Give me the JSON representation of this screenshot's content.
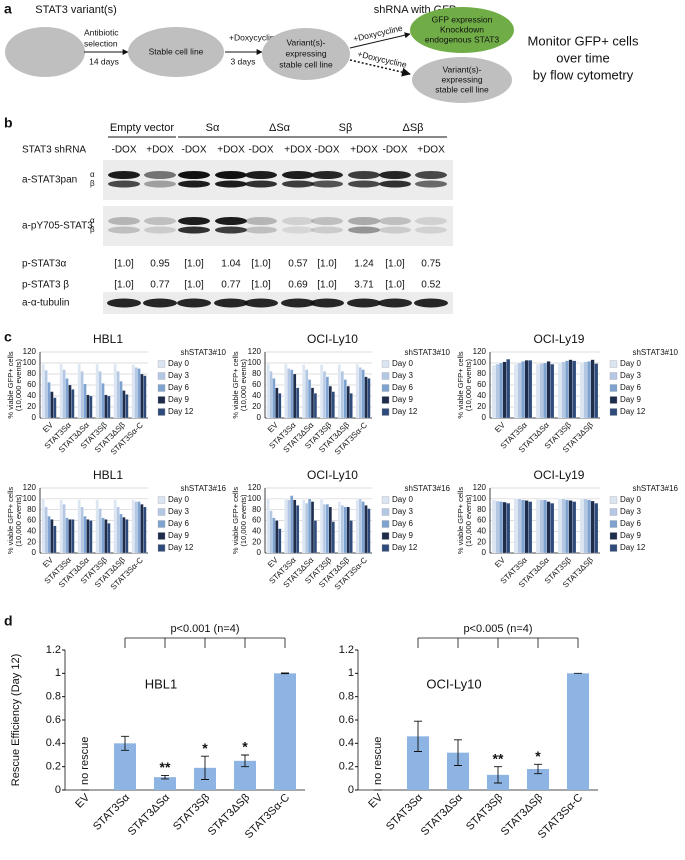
{
  "panel_labels": [
    "a",
    "b",
    "c",
    "d"
  ],
  "diagram": {
    "variant_label": "STAT3 variant(s)",
    "selection_label": [
      "Antibiotic",
      "selection"
    ],
    "selection_time": "14 days",
    "stable_line": "Stable cell line",
    "dox_label": "+Doxycycline",
    "dox_time": "3 days",
    "expressing_line": [
      "Variant(s)-",
      "expressing",
      "stable cell line"
    ],
    "shrna_label": "shRNA with GFP",
    "gfp_node": [
      "GFP expression",
      "Knockdown",
      "endogenous STAT3"
    ],
    "dox_label_2": "+Doxycycline",
    "dox_label_3": "+Doxycycline",
    "expressing_line_2": [
      "Variant(s)-",
      "expressing",
      "stable cell line"
    ],
    "monitor": [
      "Monitor GFP+ cells",
      "over time",
      "by flow cytometry"
    ]
  },
  "blot": {
    "groups": [
      "Empty vector",
      "Sα",
      "ΔSα",
      "Sβ",
      "ΔSβ"
    ],
    "shrna_label": "STAT3 shRNA",
    "lanes": [
      "-DOX",
      "+DOX",
      "-DOX",
      "+DOX",
      "-DOX",
      "+DOX",
      "-DOX",
      "+DOX",
      "-DOX",
      "+DOX"
    ],
    "rows": [
      {
        "label": "a-STAT3pan",
        "isoforms": [
          "α",
          "β"
        ]
      },
      {
        "label": "a-pY705-STAT3",
        "isoforms": [
          "α",
          "β"
        ]
      }
    ],
    "quant": [
      {
        "label": "p-STAT3α",
        "values": [
          "[1.0]",
          "0.95",
          "[1.0]",
          "1.04",
          "[1.0]",
          "0.57",
          "[1.0]",
          "1.24",
          "[1.0]",
          "0.75"
        ]
      },
      {
        "label": "p-STAT3 β",
        "values": [
          "[1.0]",
          "0.77",
          "[1.0]",
          "0.77",
          "[1.0]",
          "0.69",
          "[1.0]",
          "3.71",
          "[1.0]",
          "0.52"
        ]
      }
    ],
    "loading": "a-α-tubulin"
  },
  "chart_data": [
    {
      "type": "bar",
      "title": "HBL1",
      "y_label": [
        "% viable GFP+ cells",
        "(10,000 events)"
      ],
      "legend_title": "shSTAT3#10",
      "categories": [
        "EV",
        "STAT3Sα",
        "STAT3ΔSα",
        "STAT3Sβ",
        "STAT3ΔSβ",
        "STAT3Sα-C"
      ],
      "category_colors": [
        "#111111",
        "#111111",
        "#111111",
        "#111111",
        "#111111",
        "#c00000"
      ],
      "series": [
        {
          "name": "Day 0",
          "color": "#dce6f2",
          "values": [
            98,
            98,
            98,
            98,
            98,
            97
          ]
        },
        {
          "name": "Day 3",
          "color": "#b4c8e4",
          "values": [
            87,
            88,
            85,
            85,
            85,
            92
          ]
        },
        {
          "name": "Day 6",
          "color": "#7fa3d0",
          "values": [
            65,
            72,
            62,
            63,
            67,
            90
          ]
        },
        {
          "name": "Day 9",
          "color": "#1f2d4d",
          "values": [
            48,
            60,
            42,
            42,
            50,
            80
          ]
        },
        {
          "name": "Day 12",
          "color": "#2f4b7c",
          "values": [
            37,
            52,
            40,
            40,
            43,
            77
          ]
        }
      ],
      "ylim": [
        0,
        120
      ],
      "yticks": [
        0,
        20,
        40,
        60,
        80,
        100,
        120
      ],
      "grid": true
    },
    {
      "type": "bar",
      "title": "OCI-Ly10",
      "y_label": [
        "% viable GFP+ cells",
        "(10,000 events)"
      ],
      "legend_title": "shSTAT3#10",
      "categories": [
        "EV",
        "STAT3Sα",
        "STAT3ΔSα",
        "STAT3Sβ",
        "STAT3ΔSβ",
        "STAT3Sα-C"
      ],
      "category_colors": [
        "#111111",
        "#111111",
        "#111111",
        "#111111",
        "#111111",
        "#c00000"
      ],
      "series": [
        {
          "name": "Day 0",
          "color": "#dce6f2",
          "values": [
            98,
            98,
            97,
            97,
            97,
            98
          ]
        },
        {
          "name": "Day 3",
          "color": "#b4c8e4",
          "values": [
            85,
            90,
            88,
            85,
            85,
            92
          ]
        },
        {
          "name": "Day 6",
          "color": "#7fa3d0",
          "values": [
            72,
            88,
            70,
            75,
            70,
            88
          ]
        },
        {
          "name": "Day 9",
          "color": "#1f2d4d",
          "values": [
            55,
            80,
            55,
            58,
            58,
            75
          ]
        },
        {
          "name": "Day 12",
          "color": "#2f4b7c",
          "values": [
            45,
            55,
            45,
            48,
            45,
            72
          ]
        }
      ],
      "ylim": [
        0,
        120
      ],
      "yticks": [
        0,
        20,
        40,
        60,
        80,
        100,
        120
      ],
      "grid": true
    },
    {
      "type": "bar",
      "title": "OCI-Ly19",
      "y_label": [
        "% viable GFP+ cells",
        "(10,000 events)"
      ],
      "legend_title": "shSTAT3#10",
      "categories": [
        "EV",
        "STAT3Sα",
        "STAT3ΔSα",
        "STAT3Sβ",
        "STAT3ΔSβ"
      ],
      "category_colors": [
        "#111111",
        "#111111",
        "#111111",
        "#111111",
        "#111111"
      ],
      "series": [
        {
          "name": "Day 0",
          "color": "#dce6f2",
          "values": [
            96,
            98,
            98,
            100,
            100
          ]
        },
        {
          "name": "Day 3",
          "color": "#b4c8e4",
          "values": [
            98,
            100,
            99,
            102,
            102
          ]
        },
        {
          "name": "Day 6",
          "color": "#7fa3d0",
          "values": [
            100,
            103,
            100,
            104,
            103
          ]
        },
        {
          "name": "Day 9",
          "color": "#1f2d4d",
          "values": [
            102,
            105,
            103,
            106,
            106
          ]
        },
        {
          "name": "Day 12",
          "color": "#2f4b7c",
          "values": [
            107,
            105,
            98,
            104,
            99
          ]
        }
      ],
      "ylim": [
        0,
        120
      ],
      "yticks": [
        0,
        20,
        40,
        60,
        80,
        100,
        120
      ],
      "grid": true
    },
    {
      "type": "bar",
      "title": "HBL1",
      "y_label": [
        "% viable GFP+ cells",
        "(10,000 events)"
      ],
      "legend_title": "shSTAT3#16",
      "categories": [
        "EV",
        "STAT3Sα",
        "STAT3ΔSα",
        "STAT3Sβ",
        "STAT3ΔSβ",
        "STAT3Sα-C"
      ],
      "category_colors": [
        "#111111",
        "#111111",
        "#111111",
        "#111111",
        "#111111",
        "#c00000"
      ],
      "series": [
        {
          "name": "Day 0",
          "color": "#dce6f2",
          "values": [
            100,
            98,
            98,
            98,
            98,
            98
          ]
        },
        {
          "name": "Day 3",
          "color": "#b4c8e4",
          "values": [
            85,
            90,
            85,
            82,
            85,
            95
          ]
        },
        {
          "name": "Day 6",
          "color": "#7fa3d0",
          "values": [
            68,
            65,
            68,
            65,
            72,
            95
          ]
        },
        {
          "name": "Day 9",
          "color": "#1f2d4d",
          "values": [
            62,
            62,
            62,
            62,
            66,
            90
          ]
        },
        {
          "name": "Day 12",
          "color": "#2f4b7c",
          "values": [
            50,
            62,
            60,
            55,
            62,
            85
          ]
        }
      ],
      "ylim": [
        0,
        120
      ],
      "yticks": [
        0,
        20,
        40,
        60,
        80,
        100,
        120
      ],
      "grid": true
    },
    {
      "type": "bar",
      "title": "OCI-Ly10",
      "y_label": [
        "% viable GFP+ cells",
        "(10,000 events)"
      ],
      "legend_title": "shSTAT3#16",
      "categories": [
        "EV",
        "STAT3Sα",
        "STAT3ΔSα",
        "STAT3Sβ",
        "STAT3ΔSβ",
        "STAT3Sα-C"
      ],
      "category_colors": [
        "#111111",
        "#111111",
        "#111111",
        "#111111",
        "#111111",
        "#c00000"
      ],
      "series": [
        {
          "name": "Day 0",
          "color": "#dce6f2",
          "values": [
            100,
            100,
            98,
            100,
            95,
            98
          ]
        },
        {
          "name": "Day 3",
          "color": "#b4c8e4",
          "values": [
            78,
            98,
            92,
            90,
            88,
            100
          ]
        },
        {
          "name": "Day 6",
          "color": "#7fa3d0",
          "values": [
            65,
            106,
            100,
            90,
            85,
            95
          ]
        },
        {
          "name": "Day 9",
          "color": "#1f2d4d",
          "values": [
            60,
            98,
            95,
            85,
            85,
            88
          ]
        },
        {
          "name": "Day 12",
          "color": "#2f4b7c",
          "values": [
            45,
            88,
            60,
            58,
            60,
            82
          ]
        }
      ],
      "ylim": [
        0,
        120
      ],
      "yticks": [
        0,
        20,
        40,
        60,
        80,
        100,
        120
      ],
      "grid": true
    },
    {
      "type": "bar",
      "title": "OCI-Ly19",
      "y_label": [
        "% viable GFP+ cells",
        "(10,000 events)"
      ],
      "legend_title": "shSTAT3#16",
      "categories": [
        "EV",
        "STAT3Sα",
        "STAT3ΔSα",
        "STAT3Sβ",
        "STAT3ΔSβ"
      ],
      "category_colors": [
        "#111111",
        "#111111",
        "#111111",
        "#111111",
        "#111111"
      ],
      "series": [
        {
          "name": "Day 0",
          "color": "#dce6f2",
          "values": [
            98,
            100,
            99,
            100,
            100
          ]
        },
        {
          "name": "Day 3",
          "color": "#b4c8e4",
          "values": [
            96,
            100,
            98,
            100,
            100
          ]
        },
        {
          "name": "Day 6",
          "color": "#7fa3d0",
          "values": [
            95,
            98,
            98,
            98,
            98
          ]
        },
        {
          "name": "Day 9",
          "color": "#1f2d4d",
          "values": [
            94,
            97,
            95,
            97,
            96
          ]
        },
        {
          "name": "Day 12",
          "color": "#2f4b7c",
          "values": [
            92,
            95,
            92,
            95,
            92
          ]
        }
      ],
      "ylim": [
        0,
        120
      ],
      "yticks": [
        0,
        20,
        40,
        60,
        80,
        100,
        120
      ],
      "grid": true
    },
    {
      "type": "bar",
      "title": "HBL1",
      "y_label": "Rescue Efficiency (Day 12)",
      "categories": [
        "EV",
        "STAT3Sα",
        "STAT3ΔSα",
        "STAT3Sβ",
        "STAT3ΔSβ",
        "STAT3Sα-C"
      ],
      "category_colors": [
        "#111111",
        "#111111",
        "#111111",
        "#111111",
        "#111111",
        "#c00000"
      ],
      "values": [
        0,
        0.4,
        0.11,
        0.19,
        0.25,
        1.0
      ],
      "errors": [
        0,
        0.06,
        0.015,
        0.1,
        0.05,
        0.003
      ],
      "color": "#8db4e2",
      "bar_notes": [
        "no rescue",
        null,
        null,
        null,
        null,
        null
      ],
      "stars": [
        null,
        null,
        "**",
        "*",
        "*",
        null
      ],
      "bracket_text": "p<0.001 (n=4)",
      "ylim": [
        0,
        1.2
      ],
      "yticks": [
        0,
        0.2,
        0.4,
        0.6,
        0.8,
        1,
        1.2
      ],
      "grid": false
    },
    {
      "type": "bar",
      "title": "OCI-Ly10",
      "categories": [
        "EV",
        "STAT3Sα",
        "STAT3ΔSα",
        "STAT3Sβ",
        "STAT3ΔSβ",
        "STAT3Sα-C"
      ],
      "category_colors": [
        "#111111",
        "#111111",
        "#111111",
        "#111111",
        "#111111",
        "#c00000"
      ],
      "values": [
        0,
        0.46,
        0.32,
        0.13,
        0.18,
        1.0
      ],
      "errors": [
        0,
        0.13,
        0.11,
        0.07,
        0.04,
        0
      ],
      "color": "#8db4e2",
      "bar_notes": [
        "no rescue",
        null,
        null,
        null,
        null,
        null
      ],
      "stars": [
        null,
        null,
        null,
        "**",
        "*",
        null
      ],
      "bracket_text": "p<0.005 (n=4)",
      "ylim": [
        0,
        1.2
      ],
      "yticks": [
        0,
        0.2,
        0.4,
        0.6,
        0.8,
        1,
        1.2
      ],
      "grid": false
    }
  ]
}
